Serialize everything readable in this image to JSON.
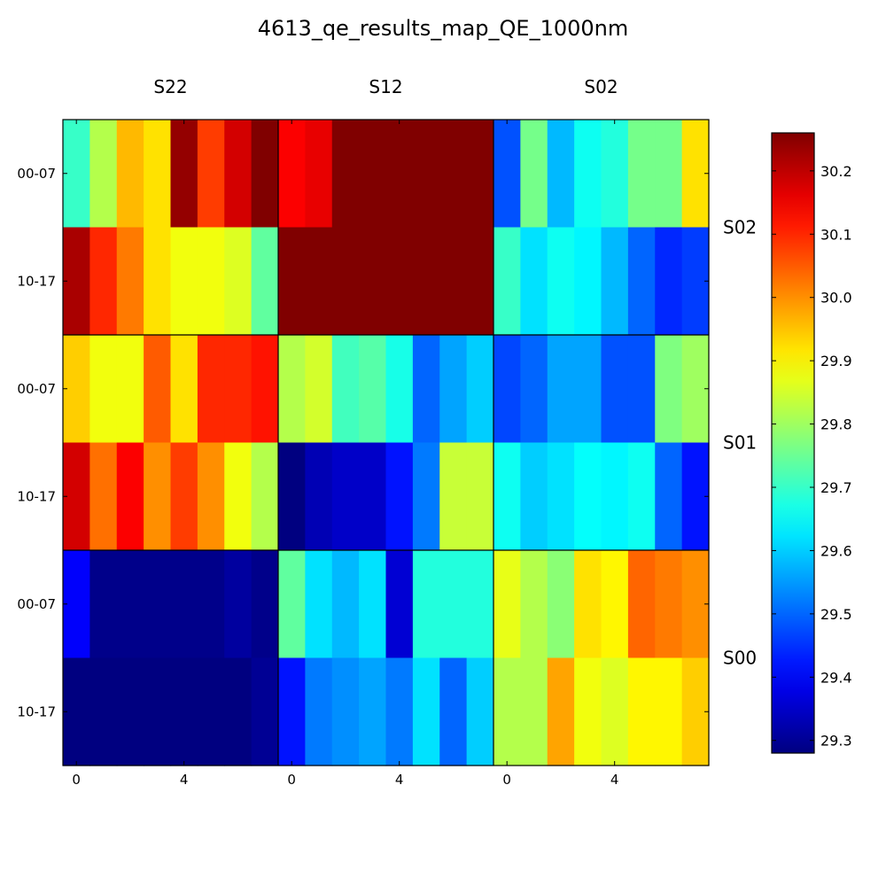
{
  "chart_data": {
    "type": "heatmap",
    "title": "4613_qe_results_map_QE_1000nm",
    "col_panels": [
      "S22",
      "S12",
      "S02"
    ],
    "row_panels": [
      "S02",
      "S01",
      "S00"
    ],
    "x_ticks": [
      "0",
      "4"
    ],
    "y_ticks": [
      "00-07",
      "10-17"
    ],
    "colorbar": {
      "min": 29.28,
      "max": 30.26,
      "ticks": [
        "29.3",
        "29.4",
        "29.5",
        "29.6",
        "29.7",
        "29.8",
        "29.9",
        "30.0",
        "30.1",
        "30.2"
      ]
    },
    "values": [
      [
        29.7,
        29.82,
        29.96,
        29.92,
        30.24,
        30.08,
        30.18,
        30.26,
        30.14,
        30.16,
        30.26,
        30.26,
        30.26,
        30.26,
        30.26,
        30.26,
        29.48,
        29.76,
        29.58,
        29.66,
        29.68,
        29.76,
        29.76,
        29.92
      ],
      [
        30.22,
        30.1,
        30.02,
        29.92,
        29.88,
        29.88,
        29.86,
        29.74,
        30.26,
        30.26,
        30.26,
        30.26,
        30.26,
        30.26,
        30.26,
        30.26,
        29.7,
        29.62,
        29.66,
        29.64,
        29.58,
        29.5,
        29.44,
        29.46
      ],
      [
        29.94,
        29.88,
        29.88,
        30.05,
        29.92,
        30.1,
        30.1,
        30.12,
        29.82,
        29.85,
        29.71,
        29.73,
        29.67,
        29.5,
        29.56,
        29.6,
        29.47,
        29.5,
        29.56,
        29.56,
        29.48,
        29.48,
        29.77,
        29.8
      ],
      [
        30.18,
        30.03,
        30.14,
        30.0,
        30.08,
        30.0,
        29.88,
        29.82,
        29.28,
        29.33,
        29.35,
        29.35,
        29.42,
        29.52,
        29.84,
        29.84,
        29.66,
        29.6,
        29.62,
        29.65,
        29.64,
        29.66,
        29.5,
        29.42
      ],
      [
        29.4,
        29.29,
        29.29,
        29.29,
        29.29,
        29.29,
        29.31,
        29.29,
        29.74,
        29.62,
        29.58,
        29.62,
        29.36,
        29.68,
        29.68,
        29.68,
        29.87,
        29.82,
        29.78,
        29.92,
        29.9,
        30.04,
        30.02,
        30.0
      ],
      [
        29.28,
        29.28,
        29.28,
        29.28,
        29.28,
        29.28,
        29.28,
        29.3,
        29.42,
        29.52,
        29.54,
        29.56,
        29.52,
        29.62,
        29.5,
        29.6,
        29.82,
        29.82,
        29.98,
        29.88,
        29.86,
        29.9,
        29.9,
        29.94
      ]
    ]
  }
}
